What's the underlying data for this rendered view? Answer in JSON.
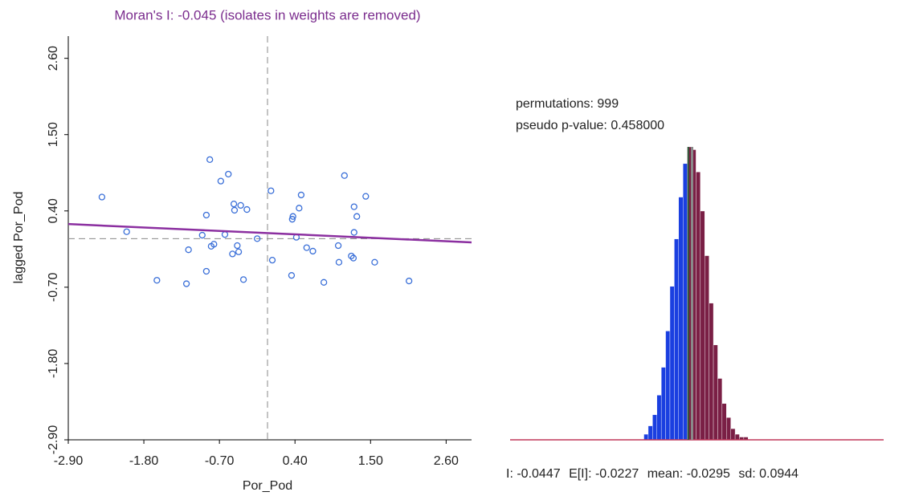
{
  "chart_data": [
    {
      "type": "scatter",
      "title": "Moran's I: -0.045 (isolates in weights are removed)",
      "x_label": "Por_Pod",
      "y_label": "lagged Por_Pod",
      "color": "#3a6fd8",
      "line_color": "#8b2fa0",
      "reference_color": "#888888",
      "xlim": [
        -2.9,
        2.97
      ],
      "ylim": [
        -2.9,
        2.92
      ],
      "xticks": [
        {
          "value": -2.9,
          "label": "-2.90"
        },
        {
          "value": -1.8,
          "label": "-1.80"
        },
        {
          "value": -0.7,
          "label": "-0.70"
        },
        {
          "value": 0.4,
          "label": "0.40"
        },
        {
          "value": 1.5,
          "label": "1.50"
        },
        {
          "value": 2.6,
          "label": "2.60"
        }
      ],
      "yticks": [
        {
          "value": -2.9,
          "label": "-2.90"
        },
        {
          "value": -1.8,
          "label": "-1.80"
        },
        {
          "value": -0.7,
          "label": "-0.70"
        },
        {
          "value": 0.4,
          "label": "0.40"
        },
        {
          "value": 1.5,
          "label": "1.50"
        },
        {
          "value": 2.6,
          "label": "2.60"
        }
      ],
      "reference_x": 0,
      "reference_y": 0,
      "regression": {
        "slope": -0.045,
        "intercept": 0.08
      },
      "x": [
        -2.41,
        -2.05,
        -1.61,
        -1.18,
        -1.15,
        -0.89,
        -0.95,
        -0.89,
        -0.84,
        -0.82,
        -0.78,
        -0.68,
        -0.62,
        -0.57,
        -0.51,
        -0.48,
        -0.49,
        -0.44,
        -0.42,
        -0.39,
        -0.35,
        -0.3,
        -0.15,
        0.05,
        0.07,
        0.35,
        0.36,
        0.37,
        0.42,
        0.46,
        0.49,
        0.57,
        0.66,
        0.82,
        1.03,
        1.04,
        1.12,
        1.22,
        1.25,
        1.26,
        1.26,
        1.3,
        1.43,
        1.56,
        2.06
      ],
      "values": [
        0.6,
        0.1,
        -0.6,
        -0.65,
        -0.16,
        -0.47,
        0.05,
        0.34,
        1.14,
        -0.11,
        -0.08,
        0.83,
        0.06,
        0.93,
        -0.22,
        0.41,
        0.5,
        -0.1,
        -0.19,
        0.48,
        -0.59,
        0.42,
        0.0,
        0.69,
        -0.31,
        -0.53,
        0.28,
        0.32,
        0.02,
        0.44,
        0.63,
        -0.13,
        -0.18,
        -0.63,
        -0.1,
        -0.34,
        0.91,
        -0.25,
        -0.28,
        0.46,
        0.09,
        0.32,
        0.61,
        -0.34,
        -0.61
      ]
    },
    {
      "type": "histogram",
      "permutations": {
        "label": "permutations:",
        "value": 999
      },
      "pseudo_p": {
        "label": "pseudo p-value:",
        "value": "0.458000"
      },
      "stats": [
        {
          "label": "I:",
          "value": -0.0447
        },
        {
          "label": "E[I]:",
          "value": -0.0227
        },
        {
          "label": "mean:",
          "value": -0.0295
        },
        {
          "label": "sd:",
          "value": 0.0944
        }
      ],
      "colors": {
        "below": "#1a3fe0",
        "above": "#7a1f45",
        "observed": "#2f5d3a",
        "expected": "#8a8a8a",
        "axis": "#c0395a"
      },
      "xlim": [
        -1.07,
        1.08
      ],
      "ylim": [
        0,
        105
      ],
      "bins": [
        -0.3,
        -0.275,
        -0.25,
        -0.225,
        -0.2,
        -0.175,
        -0.15,
        -0.125,
        -0.1,
        -0.075,
        -0.05,
        -0.025,
        0,
        0.025,
        0.05,
        0.075,
        0.1,
        0.125,
        0.15,
        0.175,
        0.2,
        0.225,
        0.25,
        0.275,
        0.3,
        0.325,
        0.35
      ],
      "values": [
        2,
        5,
        9,
        16,
        26,
        39,
        55,
        72,
        87,
        99,
        105,
        104,
        96,
        82,
        66,
        49,
        34,
        22,
        13,
        8,
        4,
        2,
        1,
        1,
        0,
        0
      ]
    }
  ]
}
